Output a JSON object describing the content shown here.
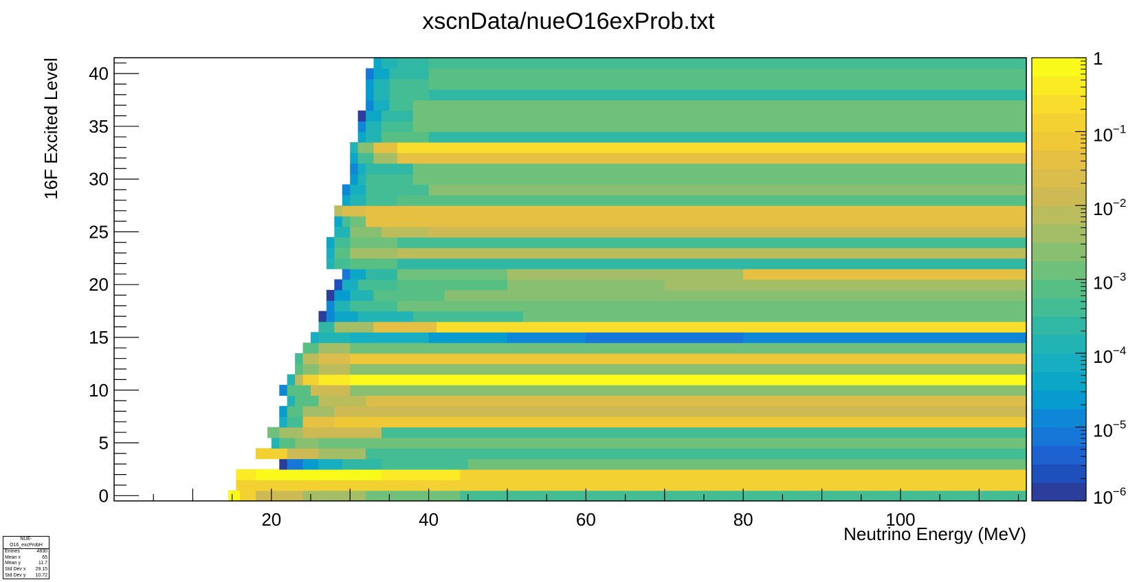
{
  "chart_data": {
    "type": "heatmap",
    "title": "xscnData/nueO16exProb.txt",
    "xlabel": "Neutrino Energy (MeV)",
    "ylabel": "16F Excited Level",
    "xlim": [
      0,
      116
    ],
    "ylim": [
      -0.5,
      41.5
    ],
    "x_ticks": [
      20,
      40,
      60,
      80,
      100
    ],
    "y_ticks": [
      0,
      5,
      10,
      15,
      20,
      25,
      30,
      35,
      40
    ],
    "z_scale": "log",
    "z_range": [
      1e-06,
      1
    ],
    "z_bin_edges_log10": [
      -6,
      -5.75,
      -5.5,
      -5.25,
      -5,
      -4.75,
      -4.5,
      -4.25,
      -4,
      -3.75,
      -3.5,
      -3.25,
      -3,
      -2.75,
      -2.5,
      -2.25,
      -2,
      -1.75,
      -1.5,
      -1.25,
      -1,
      -0.75,
      -0.5,
      -0.25,
      0
    ],
    "z_palette": [
      "#2c3e9c",
      "#1e50bc",
      "#1d62d0",
      "#1677d8",
      "#0e88d6",
      "#079bcf",
      "#0ca6c7",
      "#16aec0",
      "#22b4b5",
      "#31b8a4",
      "#44bc94",
      "#58bf84",
      "#6ec07a",
      "#88bf71",
      "#a3be66",
      "#bbbc5c",
      "#ceba54",
      "#dbbd4b",
      "#e6c042",
      "#efc838",
      "#f4d132",
      "#f8dd2c",
      "#fbeb25",
      "#f9fa19"
    ],
    "z_tick_labels": [
      {
        "mantissa": "1",
        "exp": ""
      },
      {
        "mantissa": "10",
        "exp": "−1"
      },
      {
        "mantissa": "10",
        "exp": "−2"
      },
      {
        "mantissa": "10",
        "exp": "−3"
      },
      {
        "mantissa": "10",
        "exp": "−4"
      },
      {
        "mantissa": "10",
        "exp": "−5"
      },
      {
        "mantissa": "10",
        "exp": "−6"
      }
    ],
    "rows": [
      {
        "level": 0,
        "segments": [
          [
            14.5,
            16,
            -0.2
          ],
          [
            16,
            18,
            -1.0
          ],
          [
            18,
            24,
            -1.8
          ],
          [
            24,
            32,
            -2.4
          ],
          [
            32,
            44,
            -2.9
          ],
          [
            44,
            116,
            -3.3
          ]
        ]
      },
      {
        "level": 1,
        "segments": [
          [
            15.5,
            17,
            -1.0
          ],
          [
            17,
            40,
            -0.8
          ],
          [
            40,
            116,
            -1.0
          ]
        ]
      },
      {
        "level": 2,
        "segments": [
          [
            15.5,
            18,
            -0.3
          ],
          [
            18,
            34,
            -0.1
          ],
          [
            34,
            44,
            -0.3
          ],
          [
            44,
            116,
            -0.9
          ]
        ]
      },
      {
        "level": 3,
        "segments": [
          [
            21,
            22,
            -5.8
          ],
          [
            22,
            24,
            -5.1
          ],
          [
            24,
            26,
            -4.6
          ],
          [
            26,
            29,
            -4.1
          ],
          [
            29,
            34,
            -3.7
          ],
          [
            34,
            45,
            -3.3
          ],
          [
            45,
            116,
            -2.8
          ]
        ]
      },
      {
        "level": 4,
        "segments": [
          [
            18,
            22,
            -0.9
          ],
          [
            22,
            26,
            -2.0
          ],
          [
            26,
            32,
            -2.5
          ],
          [
            32,
            116,
            -3.3
          ]
        ]
      },
      {
        "level": 5,
        "segments": [
          [
            20,
            21,
            -3.8
          ],
          [
            21,
            23,
            -3.2
          ],
          [
            23,
            26,
            -2.6
          ],
          [
            26,
            116,
            -3.0
          ]
        ]
      },
      {
        "level": 6,
        "segments": [
          [
            19.5,
            21,
            -2.8
          ],
          [
            21,
            24,
            -2.3
          ],
          [
            24,
            34,
            -2.0
          ],
          [
            34,
            116,
            -3.3
          ]
        ]
      },
      {
        "level": 7,
        "segments": [
          [
            21,
            22,
            -4.2
          ],
          [
            22,
            24,
            -3.3
          ],
          [
            24,
            28,
            -1.4
          ],
          [
            28,
            116,
            -1.1
          ]
        ]
      },
      {
        "level": 8,
        "segments": [
          [
            21,
            22,
            -4.6
          ],
          [
            22,
            24,
            -3.2
          ],
          [
            24,
            28,
            -2.3
          ],
          [
            28,
            116,
            -1.9
          ]
        ]
      },
      {
        "level": 9,
        "segments": [
          [
            22,
            23,
            -4.0
          ],
          [
            23,
            26,
            -3.2
          ],
          [
            26,
            32,
            -2.1
          ],
          [
            32,
            116,
            -1.7
          ]
        ]
      },
      {
        "level": 10,
        "segments": [
          [
            21,
            22,
            -5.0
          ],
          [
            22,
            25,
            -3.1
          ],
          [
            25,
            30,
            -2.0
          ],
          [
            30,
            116,
            -2.6
          ]
        ]
      },
      {
        "level": 11,
        "segments": [
          [
            22,
            23,
            -3.8
          ],
          [
            23,
            24,
            -2.2
          ],
          [
            24,
            26,
            -0.8
          ],
          [
            26,
            30,
            -0.5
          ],
          [
            30,
            116,
            -0.2
          ]
        ]
      },
      {
        "level": 12,
        "segments": [
          [
            23,
            24,
            -3.2
          ],
          [
            24,
            26,
            -2.6
          ],
          [
            26,
            30,
            -2.1
          ],
          [
            30,
            116,
            -2.7
          ]
        ]
      },
      {
        "level": 13,
        "segments": [
          [
            23,
            24,
            -3.4
          ],
          [
            24,
            26,
            -2.2
          ],
          [
            26,
            30,
            -1.6
          ],
          [
            30,
            116,
            -1.1
          ]
        ]
      },
      {
        "level": 14,
        "segments": [
          [
            24,
            26,
            -3.2
          ],
          [
            26,
            30,
            -2.5
          ],
          [
            30,
            116,
            -2.9
          ]
        ]
      },
      {
        "level": 15,
        "segments": [
          [
            25,
            26,
            -4.2
          ],
          [
            26,
            30,
            -3.8
          ],
          [
            30,
            40,
            -4.1
          ],
          [
            40,
            50,
            -4.6
          ],
          [
            50,
            60,
            -4.9
          ],
          [
            60,
            80,
            -5.1
          ],
          [
            80,
            100,
            -5.0
          ],
          [
            100,
            116,
            -4.8
          ]
        ]
      },
      {
        "level": 16,
        "segments": [
          [
            26,
            28,
            -3.6
          ],
          [
            28,
            33,
            -2.3
          ],
          [
            33,
            41,
            -1.4
          ],
          [
            41,
            116,
            -0.55
          ]
        ]
      },
      {
        "level": 17,
        "segments": [
          [
            26,
            27,
            -5.9
          ],
          [
            27,
            28,
            -4.8
          ],
          [
            28,
            31,
            -4.3
          ],
          [
            31,
            38,
            -3.8
          ],
          [
            38,
            52,
            -3.4
          ],
          [
            52,
            116,
            -3.0
          ]
        ]
      },
      {
        "level": 18,
        "segments": [
          [
            27,
            28,
            -4.8
          ],
          [
            28,
            30,
            -3.9
          ],
          [
            30,
            36,
            -3.3
          ],
          [
            36,
            116,
            -2.8
          ]
        ]
      },
      {
        "level": 19,
        "segments": [
          [
            27,
            28,
            -5.9
          ],
          [
            28,
            30,
            -4.6
          ],
          [
            30,
            33,
            -3.9
          ],
          [
            33,
            42,
            -3.1
          ],
          [
            42,
            116,
            -2.6
          ]
        ]
      },
      {
        "level": 20,
        "segments": [
          [
            28,
            29,
            -5.6
          ],
          [
            29,
            31,
            -4.2
          ],
          [
            31,
            36,
            -3.5
          ],
          [
            36,
            50,
            -3.1
          ],
          [
            50,
            70,
            -2.6
          ],
          [
            70,
            116,
            -2.3
          ]
        ]
      },
      {
        "level": 21,
        "segments": [
          [
            29,
            30,
            -5.1
          ],
          [
            30,
            32,
            -4.3
          ],
          [
            32,
            36,
            -3.6
          ],
          [
            36,
            50,
            -3.0
          ],
          [
            50,
            80,
            -2.5
          ],
          [
            80,
            116,
            -1.4
          ]
        ]
      },
      {
        "level": 22,
        "segments": [
          [
            27,
            28,
            -4.0
          ],
          [
            28,
            30,
            -3.4
          ],
          [
            30,
            36,
            -3.2
          ],
          [
            36,
            116,
            -3.6
          ]
        ]
      },
      {
        "level": 23,
        "segments": [
          [
            27,
            28,
            -4.1
          ],
          [
            28,
            30,
            -3.2
          ],
          [
            30,
            36,
            -2.3
          ],
          [
            36,
            116,
            -2.1
          ]
        ]
      },
      {
        "level": 24,
        "segments": [
          [
            27,
            28,
            -4.4
          ],
          [
            28,
            30,
            -3.5
          ],
          [
            30,
            36,
            -2.8
          ],
          [
            36,
            116,
            -3.3
          ]
        ]
      },
      {
        "level": 25,
        "segments": [
          [
            28,
            30,
            -4.0
          ],
          [
            30,
            34,
            -2.7
          ],
          [
            34,
            40,
            -2.2
          ],
          [
            40,
            116,
            -1.9
          ]
        ]
      },
      {
        "level": 26,
        "segments": [
          [
            28,
            29,
            -4.3
          ],
          [
            29,
            30,
            -3.5
          ],
          [
            30,
            32,
            -2.9
          ],
          [
            32,
            116,
            -1.3
          ]
        ]
      },
      {
        "level": 27,
        "segments": [
          [
            28,
            29,
            -2.1
          ],
          [
            29,
            32,
            -1.6
          ],
          [
            32,
            116,
            -1.3
          ]
        ]
      },
      {
        "level": 28,
        "segments": [
          [
            29,
            30,
            -4.5
          ],
          [
            30,
            32,
            -3.8
          ],
          [
            32,
            36,
            -3.4
          ],
          [
            36,
            116,
            -3.1
          ]
        ]
      },
      {
        "level": 29,
        "segments": [
          [
            29,
            30,
            -5.0
          ],
          [
            30,
            32,
            -4.2
          ],
          [
            32,
            40,
            -3.4
          ],
          [
            40,
            116,
            -2.6
          ]
        ]
      },
      {
        "level": 30,
        "segments": [
          [
            30,
            31,
            -4.7
          ],
          [
            31,
            32,
            -4.0
          ],
          [
            32,
            38,
            -3.5
          ],
          [
            38,
            116,
            -2.9
          ]
        ]
      },
      {
        "level": 31,
        "segments": [
          [
            30,
            31,
            -4.9
          ],
          [
            31,
            32,
            -4.1
          ],
          [
            32,
            38,
            -3.6
          ],
          [
            38,
            116,
            -3.0
          ]
        ]
      },
      {
        "level": 32,
        "segments": [
          [
            30,
            31,
            -4.5
          ],
          [
            31,
            33,
            -3.4
          ],
          [
            33,
            36,
            -2.5
          ],
          [
            36,
            116,
            -1.5
          ]
        ]
      },
      {
        "level": 33,
        "segments": [
          [
            30,
            31,
            -3.8
          ],
          [
            31,
            33,
            -2.6
          ],
          [
            33,
            36,
            -1.3
          ],
          [
            36,
            116,
            -0.6
          ]
        ]
      },
      {
        "level": 34,
        "segments": [
          [
            31,
            32,
            -4.5
          ],
          [
            32,
            34,
            -3.8
          ],
          [
            34,
            40,
            -3.2
          ],
          [
            40,
            116,
            -3.7
          ]
        ]
      },
      {
        "level": 35,
        "segments": [
          [
            31,
            32,
            -4.8
          ],
          [
            32,
            34,
            -4.0
          ],
          [
            34,
            38,
            -3.4
          ],
          [
            38,
            116,
            -2.8
          ]
        ]
      },
      {
        "level": 36,
        "segments": [
          [
            31,
            32,
            -5.8
          ],
          [
            32,
            34,
            -4.3
          ],
          [
            34,
            38,
            -3.6
          ],
          [
            38,
            116,
            -3.0
          ]
        ]
      },
      {
        "level": 37,
        "segments": [
          [
            32,
            33,
            -4.9
          ],
          [
            33,
            35,
            -4.2
          ],
          [
            35,
            38,
            -3.4
          ],
          [
            38,
            116,
            -2.9
          ]
        ]
      },
      {
        "level": 38,
        "segments": [
          [
            32,
            33,
            -4.6
          ],
          [
            33,
            35,
            -3.9
          ],
          [
            35,
            40,
            -3.4
          ],
          [
            40,
            116,
            -3.7
          ]
        ]
      },
      {
        "level": 39,
        "segments": [
          [
            32,
            33,
            -4.7
          ],
          [
            33,
            35,
            -4.0
          ],
          [
            35,
            40,
            -3.4
          ],
          [
            40,
            116,
            -3.1
          ]
        ]
      },
      {
        "level": 40,
        "segments": [
          [
            32,
            33,
            -5.2
          ],
          [
            33,
            35,
            -4.3
          ],
          [
            35,
            40,
            -3.7
          ],
          [
            40,
            116,
            -3.1
          ]
        ]
      },
      {
        "level": 41,
        "segments": [
          [
            33,
            34,
            -4.5
          ],
          [
            34,
            36,
            -3.9
          ],
          [
            36,
            40,
            -3.6
          ],
          [
            40,
            116,
            -3.4
          ]
        ]
      }
    ]
  },
  "stats": {
    "title": "NUE-O16_excProbH",
    "rows": [
      {
        "label": "Entries",
        "value": "4830"
      },
      {
        "label": "Mean x",
        "value": "65"
      },
      {
        "label": "Mean y",
        "value": "11.7"
      },
      {
        "label": "Std Dev x",
        "value": "29.15"
      },
      {
        "label": "Std Dev y",
        "value": "10.72"
      }
    ]
  }
}
